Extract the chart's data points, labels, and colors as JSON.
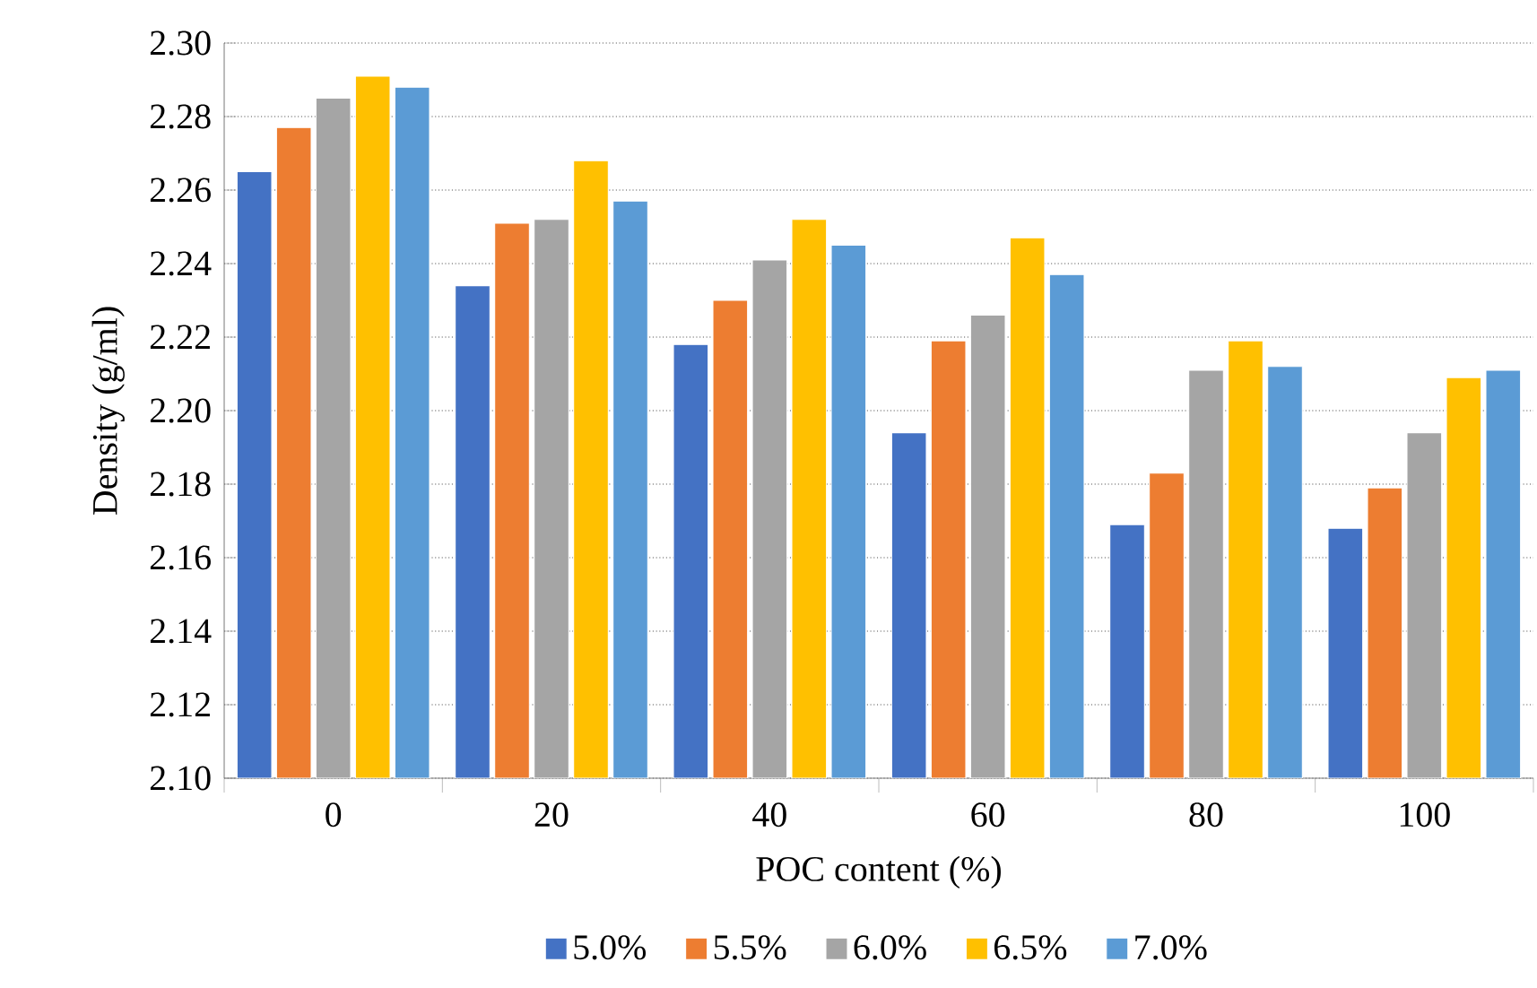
{
  "chart_data": {
    "type": "bar",
    "xlabel": "POC content (%)",
    "ylabel": "Density (g/ml)",
    "categories": [
      "0",
      "20",
      "40",
      "60",
      "80",
      "100"
    ],
    "series": [
      {
        "name": "5.0%",
        "color": "#4472c4",
        "values": [
          2.265,
          2.234,
          2.218,
          2.194,
          2.169,
          2.168
        ]
      },
      {
        "name": "5.5%",
        "color": "#ed7d31",
        "values": [
          2.277,
          2.251,
          2.23,
          2.219,
          2.183,
          2.179
        ]
      },
      {
        "name": "6.0%",
        "color": "#a5a5a5",
        "values": [
          2.285,
          2.252,
          2.241,
          2.226,
          2.211,
          2.194
        ]
      },
      {
        "name": "6.5%",
        "color": "#ffc000",
        "values": [
          2.291,
          2.268,
          2.252,
          2.247,
          2.219,
          2.209
        ]
      },
      {
        "name": "7.0%",
        "color": "#5b9bd5",
        "values": [
          2.288,
          2.257,
          2.245,
          2.237,
          2.212,
          2.211
        ]
      }
    ],
    "ylim": [
      2.1,
      2.3
    ],
    "yticks": [
      {
        "value": 2.1,
        "label": "2.10"
      },
      {
        "value": 2.12,
        "label": "2.12"
      },
      {
        "value": 2.14,
        "label": "2.14"
      },
      {
        "value": 2.16,
        "label": "2.16"
      },
      {
        "value": 2.18,
        "label": "2.18"
      },
      {
        "value": 2.2,
        "label": "2.20"
      },
      {
        "value": 2.22,
        "label": "2.22"
      },
      {
        "value": 2.24,
        "label": "2.24"
      },
      {
        "value": 2.26,
        "label": "2.26"
      },
      {
        "value": 2.28,
        "label": "2.28"
      },
      {
        "value": 2.3,
        "label": "2.30"
      }
    ],
    "grid": "y",
    "legend": "bottom"
  }
}
